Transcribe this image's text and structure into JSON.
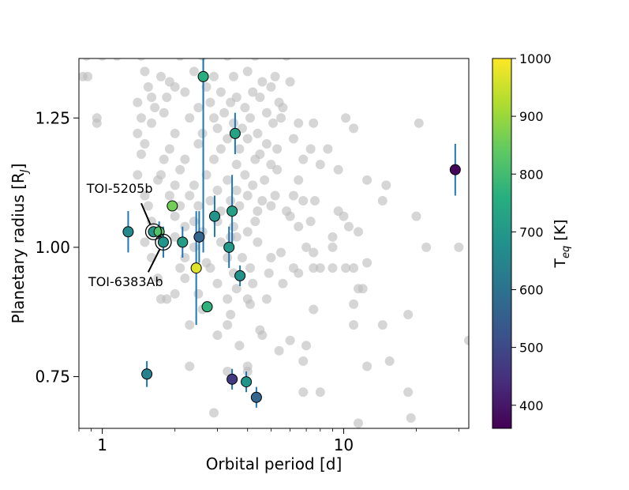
{
  "chart_data": {
    "type": "scatter",
    "xscale": "log",
    "xlabel": "Orbital period [d]",
    "ylabel_main": "Planetary radius [R",
    "ylabel_sub": "J",
    "ylabel_close": "]",
    "xlim": [
      0.8,
      33
    ],
    "ylim": [
      0.65,
      1.365
    ],
    "x_ticks": [
      {
        "value": 1,
        "label": "1"
      },
      {
        "value": 10,
        "label": "10"
      }
    ],
    "y_ticks": [
      {
        "value": 0.75,
        "label": "0.75"
      },
      {
        "value": 1.0,
        "label": "1.00"
      },
      {
        "value": 1.25,
        "label": "1.25"
      }
    ],
    "colorbar": {
      "label_main": "T",
      "label_sub": "eq",
      "label_unit": " [K]",
      "range": [
        360,
        1000
      ],
      "ticks": [
        {
          "value": 400,
          "label": "400"
        },
        {
          "value": 500,
          "label": "500"
        },
        {
          "value": 600,
          "label": "600"
        },
        {
          "value": 700,
          "label": "700"
        },
        {
          "value": 800,
          "label": "800"
        },
        {
          "value": 900,
          "label": "900"
        },
        {
          "value": 1000,
          "label": "1000"
        }
      ]
    },
    "background_color": "#bdbdbd",
    "errorbar_color": "#1f77b4",
    "background_points": [
      [
        0.86,
        1.37
      ],
      [
        1.0,
        1.37
      ],
      [
        1.15,
        1.37
      ],
      [
        1.45,
        1.37
      ],
      [
        2.1,
        1.37
      ],
      [
        2.6,
        1.37
      ],
      [
        3.3,
        1.37
      ],
      [
        4.3,
        1.37
      ],
      [
        5.8,
        1.37
      ],
      [
        0.83,
        1.33
      ],
      [
        0.87,
        1.33
      ],
      [
        1.5,
        1.34
      ],
      [
        1.75,
        1.33
      ],
      [
        2.4,
        1.34
      ],
      [
        2.9,
        1.33
      ],
      [
        3.5,
        1.33
      ],
      [
        4.0,
        1.34
      ],
      [
        4.6,
        1.32
      ],
      [
        5.2,
        1.33
      ],
      [
        6.0,
        1.32
      ],
      [
        1.55,
        1.31
      ],
      [
        1.9,
        1.32
      ],
      [
        2.2,
        1.3
      ],
      [
        2.7,
        1.31
      ],
      [
        3.1,
        1.3
      ],
      [
        3.6,
        1.29
      ],
      [
        4.2,
        1.3
      ],
      [
        5.0,
        1.31
      ],
      [
        1.6,
        1.29
      ],
      [
        1.85,
        1.29
      ],
      [
        2.0,
        1.31
      ],
      [
        2.8,
        1.28
      ],
      [
        3.4,
        1.28
      ],
      [
        4.5,
        1.29
      ],
      [
        5.4,
        1.28
      ],
      [
        1.4,
        1.28
      ],
      [
        1.65,
        1.27
      ],
      [
        2.5,
        1.27
      ],
      [
        3.2,
        1.26
      ],
      [
        3.9,
        1.27
      ],
      [
        4.8,
        1.26
      ],
      [
        5.6,
        1.27
      ],
      [
        1.8,
        1.26
      ],
      [
        2.3,
        1.25
      ],
      [
        2.9,
        1.25
      ],
      [
        3.5,
        1.24
      ],
      [
        4.1,
        1.25
      ],
      [
        5.1,
        1.24
      ],
      [
        6.5,
        1.24
      ],
      [
        0.95,
        1.25
      ],
      [
        0.95,
        1.24
      ],
      [
        1.45,
        1.25
      ],
      [
        1.6,
        1.24
      ],
      [
        3.0,
        1.23
      ],
      [
        3.8,
        1.23
      ],
      [
        4.4,
        1.22
      ],
      [
        5.5,
        1.25
      ],
      [
        7.5,
        1.24
      ],
      [
        10.2,
        1.25
      ],
      [
        11.0,
        1.23
      ],
      [
        20.5,
        1.24
      ],
      [
        1.4,
        1.22
      ],
      [
        2.0,
        1.22
      ],
      [
        2.6,
        1.22
      ],
      [
        3.3,
        1.21
      ],
      [
        4.0,
        1.21
      ],
      [
        4.8,
        1.2
      ],
      [
        6.2,
        1.21
      ],
      [
        1.5,
        1.2
      ],
      [
        1.9,
        1.19
      ],
      [
        2.5,
        1.2
      ],
      [
        3.1,
        1.19
      ],
      [
        3.7,
        1.19
      ],
      [
        4.5,
        1.18
      ],
      [
        5.3,
        1.19
      ],
      [
        7.3,
        1.19
      ],
      [
        8.6,
        1.19
      ],
      [
        1.45,
        1.18
      ],
      [
        1.8,
        1.17
      ],
      [
        2.2,
        1.17
      ],
      [
        2.9,
        1.17
      ],
      [
        3.6,
        1.16
      ],
      [
        4.3,
        1.17
      ],
      [
        5.0,
        1.16
      ],
      [
        6.8,
        1.17
      ],
      [
        8.0,
        1.16
      ],
      [
        9.5,
        1.15
      ],
      [
        1.4,
        1.14
      ],
      [
        1.75,
        1.14
      ],
      [
        2.1,
        1.15
      ],
      [
        2.7,
        1.14
      ],
      [
        3.3,
        1.13
      ],
      [
        3.9,
        1.14
      ],
      [
        4.7,
        1.13
      ],
      [
        5.3,
        1.15
      ],
      [
        6.5,
        1.13
      ],
      [
        12.5,
        1.13
      ],
      [
        15.0,
        1.12
      ],
      [
        1.7,
        1.13
      ],
      [
        2.0,
        1.12
      ],
      [
        2.4,
        1.12
      ],
      [
        3.0,
        1.11
      ],
      [
        3.6,
        1.11
      ],
      [
        4.2,
        1.12
      ],
      [
        5.2,
        1.1
      ],
      [
        1.5,
        1.1
      ],
      [
        1.9,
        1.1
      ],
      [
        2.3,
        1.1
      ],
      [
        2.8,
        1.09
      ],
      [
        3.4,
        1.09
      ],
      [
        4.0,
        1.1
      ],
      [
        4.6,
        1.09
      ],
      [
        6.2,
        1.1
      ],
      [
        6.8,
        1.09
      ],
      [
        7.6,
        1.09
      ],
      [
        14.5,
        1.09
      ],
      [
        1.55,
        1.08
      ],
      [
        2.1,
        1.08
      ],
      [
        2.5,
        1.08
      ],
      [
        3.1,
        1.07
      ],
      [
        3.7,
        1.08
      ],
      [
        4.4,
        1.07
      ],
      [
        5.0,
        1.08
      ],
      [
        5.8,
        1.07
      ],
      [
        9.5,
        1.07
      ],
      [
        10.0,
        1.06
      ],
      [
        20.0,
        1.06
      ],
      [
        1.6,
        1.05
      ],
      [
        2.0,
        1.06
      ],
      [
        2.4,
        1.05
      ],
      [
        3.0,
        1.05
      ],
      [
        3.5,
        1.04
      ],
      [
        4.3,
        1.05
      ],
      [
        6.0,
        1.06
      ],
      [
        6.5,
        1.04
      ],
      [
        7.3,
        1.05
      ],
      [
        10.5,
        1.04
      ],
      [
        1.7,
        1.03
      ],
      [
        2.2,
        1.04
      ],
      [
        2.6,
        1.03
      ],
      [
        3.4,
        1.02
      ],
      [
        4.0,
        1.03
      ],
      [
        9.0,
        1.02
      ],
      [
        11.5,
        1.03
      ],
      [
        1.5,
        1.01
      ],
      [
        2.0,
        1.02
      ],
      [
        2.4,
        1.0
      ],
      [
        3.1,
        1.01
      ],
      [
        3.6,
        1.02
      ],
      [
        4.4,
        1.01
      ],
      [
        5.5,
        0.99
      ],
      [
        7.0,
        1.0
      ],
      [
        7.5,
        0.99
      ],
      [
        9.0,
        1.0
      ],
      [
        22.0,
        1.0
      ],
      [
        30.0,
        1.0
      ],
      [
        1.6,
        0.98
      ],
      [
        2.2,
        0.98
      ],
      [
        2.7,
        0.97
      ],
      [
        3.3,
        0.98
      ],
      [
        3.8,
        0.98
      ],
      [
        5.0,
        0.98
      ],
      [
        12.5,
        0.97
      ],
      [
        8.0,
        0.96
      ],
      [
        9.0,
        0.96
      ],
      [
        2.1,
        0.96
      ],
      [
        2.8,
        0.96
      ],
      [
        3.5,
        0.95
      ],
      [
        4.1,
        0.96
      ],
      [
        4.9,
        0.95
      ],
      [
        6.2,
        0.96
      ],
      [
        6.5,
        0.95
      ],
      [
        7.5,
        0.96
      ],
      [
        10.2,
        0.96
      ],
      [
        11.0,
        0.96
      ],
      [
        1.7,
        0.94
      ],
      [
        2.2,
        0.94
      ],
      [
        3.0,
        0.93
      ],
      [
        3.6,
        0.92
      ],
      [
        4.2,
        0.93
      ],
      [
        5.6,
        0.93
      ],
      [
        11.5,
        0.92
      ],
      [
        12.0,
        0.92
      ],
      [
        2.0,
        0.91
      ],
      [
        2.5,
        0.91
      ],
      [
        3.3,
        0.9
      ],
      [
        4.0,
        0.9
      ],
      [
        4.8,
        0.9
      ],
      [
        1.75,
        0.9
      ],
      [
        1.85,
        0.9
      ],
      [
        2.6,
        0.88
      ],
      [
        3.4,
        0.87
      ],
      [
        4.1,
        0.89
      ],
      [
        7.5,
        0.88
      ],
      [
        11.0,
        0.89
      ],
      [
        18.5,
        0.87
      ],
      [
        2.3,
        0.85
      ],
      [
        3.3,
        0.85
      ],
      [
        4.5,
        0.84
      ],
      [
        11.0,
        0.85
      ],
      [
        14.5,
        0.85
      ],
      [
        3.0,
        0.83
      ],
      [
        4.6,
        0.83
      ],
      [
        6.0,
        0.82
      ],
      [
        7.0,
        0.81
      ],
      [
        3.7,
        0.81
      ],
      [
        5.4,
        0.8
      ],
      [
        6.8,
        0.78
      ],
      [
        12.5,
        0.77
      ],
      [
        15.5,
        0.78
      ],
      [
        2.3,
        0.77
      ],
      [
        4.0,
        0.77
      ],
      [
        4.0,
        0.76
      ],
      [
        3.3,
        0.76
      ],
      [
        6.8,
        0.72
      ],
      [
        8.0,
        0.72
      ],
      [
        18.5,
        0.72
      ],
      [
        2.9,
        0.68
      ],
      [
        11.5,
        0.66
      ],
      [
        19.0,
        0.67
      ],
      [
        33.0,
        0.82
      ]
    ],
    "highlight_points": [
      {
        "x": 2.62,
        "y": 1.33,
        "teq": 760,
        "yerr": 0.06
      },
      {
        "x": 3.55,
        "y": 1.22,
        "teq": 730,
        "yerr": 0.04
      },
      {
        "x": 1.95,
        "y": 1.08,
        "teq": 860
      },
      {
        "x": 2.92,
        "y": 1.06,
        "teq": 690,
        "yerr": 0.04
      },
      {
        "x": 3.45,
        "y": 1.07,
        "teq": 720,
        "yerr": 0.07
      },
      {
        "x": 29.0,
        "y": 1.15,
        "teq": 370,
        "yerr": 0.05
      },
      {
        "x": 1.28,
        "y": 1.03,
        "teq": 660,
        "yerr": 0.04
      },
      {
        "x": 1.63,
        "y": 1.03,
        "teq": 700
      },
      {
        "x": 1.72,
        "y": 1.03,
        "teq": 820,
        "yerr": 0.02
      },
      {
        "x": 1.79,
        "y": 1.01,
        "teq": 690,
        "yerr": 0.03
      },
      {
        "x": 2.15,
        "y": 1.01,
        "teq": 710,
        "yerr": 0.03
      },
      {
        "x": 2.52,
        "y": 1.02,
        "teq": 570,
        "yerr": 0.05
      },
      {
        "x": 3.35,
        "y": 1.0,
        "teq": 700,
        "yerr": 0.04
      },
      {
        "x": 2.45,
        "y": 0.96,
        "teq": 970,
        "yerr": 0.11
      },
      {
        "x": 3.72,
        "y": 0.945,
        "teq": 680,
        "yerr": 0.02
      },
      {
        "x": 2.72,
        "y": 0.885,
        "teq": 770
      },
      {
        "x": 1.53,
        "y": 0.755,
        "teq": 640,
        "yerr": 0.025
      },
      {
        "x": 3.45,
        "y": 0.745,
        "teq": 470,
        "yerr": 0.02
      },
      {
        "x": 3.95,
        "y": 0.74,
        "teq": 690,
        "yerr": 0.02
      },
      {
        "x": 4.35,
        "y": 0.71,
        "teq": 570,
        "yerr": 0.02
      }
    ],
    "vertical_errorbar": {
      "x": 2.62,
      "y_low": 0.99,
      "y_high": 1.365
    },
    "annotations": [
      {
        "label": "TOI-5205b",
        "x": 1.63,
        "y": 1.03,
        "label_x": 1.18,
        "label_y": 1.105,
        "arrow_from_x": 1.45,
        "arrow_from_y": 1.085
      },
      {
        "label": "TOI-6383Ab",
        "x": 1.79,
        "y": 1.01,
        "label_x": 1.25,
        "label_y": 0.925,
        "arrow_from_x": 1.55,
        "arrow_from_y": 0.952
      }
    ]
  }
}
